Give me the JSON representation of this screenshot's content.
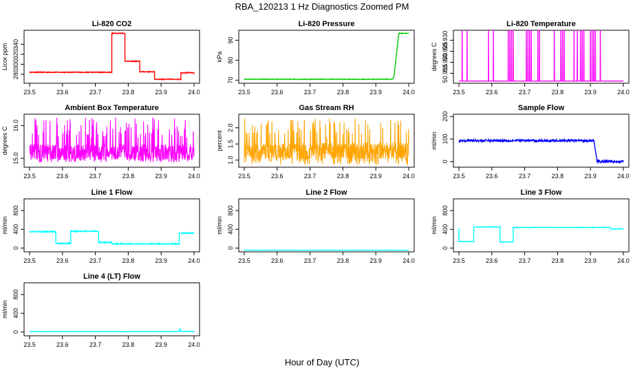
{
  "title": "RBA_120213  1 Hz Diagnostics Zoomed PM",
  "xlabel": "Hour of Day (UTC)",
  "chart_data": [
    {
      "type": "line",
      "title": "Li-820 CO2",
      "ylabel": "Licor ppm",
      "color": "#ff0000",
      "xlim": [
        23.5,
        24.0
      ],
      "ylim": [
        262,
        368
      ],
      "xticks": [
        "23.5",
        "23.6",
        "23.7",
        "23.8",
        "23.9",
        "24.0"
      ],
      "yticks": [
        "280",
        "300",
        "320",
        "340"
      ],
      "series": [
        {
          "x": [
            23.5,
            23.75,
            23.75,
            23.79,
            23.79,
            23.835,
            23.835,
            23.88,
            23.88,
            23.96,
            23.96,
            24.0
          ],
          "y": [
            284,
            284,
            362,
            362,
            306,
            306,
            285,
            285,
            270,
            270,
            283,
            283
          ]
        }
      ],
      "noise": 0.8
    },
    {
      "type": "line",
      "title": "Li-820 Pressure",
      "ylabel": "kPa",
      "color": "#00cc00",
      "xlim": [
        23.5,
        24.0
      ],
      "ylim": [
        68.5,
        95
      ],
      "xticks": [
        "23.5",
        "23.6",
        "23.7",
        "23.8",
        "23.9",
        "24.0"
      ],
      "yticks": [
        "70",
        "80",
        "90"
      ],
      "series": [
        {
          "x": [
            23.5,
            23.95,
            23.955,
            23.962,
            23.97,
            24.0
          ],
          "y": [
            70.5,
            70.5,
            71.5,
            82,
            93.5,
            93.5
          ]
        }
      ],
      "noise": 0.15
    },
    {
      "type": "line",
      "title": "Li-820 Temperature",
      "ylabel": "degrees C",
      "color": "#ff00ff",
      "xlim": [
        23.5,
        24.0
      ],
      "ylim": [
        50.9105,
        50.9345
      ],
      "xticks": [
        "23.5",
        "23.6",
        "23.7",
        "23.8",
        "23.9",
        "24.0"
      ],
      "yticks": [
        "50.915",
        "50.920",
        "50.925",
        "50.930"
      ],
      "baseline": 50.9115,
      "spike_top": 50.9345,
      "spikes": [
        23.51,
        23.525,
        23.59,
        23.605,
        23.65,
        23.655,
        23.66,
        23.665,
        23.705,
        23.71,
        23.715,
        23.72,
        23.74,
        23.745,
        23.79,
        23.81,
        23.815,
        23.82,
        23.85,
        23.86,
        23.87,
        23.875,
        23.88,
        23.9,
        23.905,
        23.91,
        23.915,
        23.93
      ]
    },
    {
      "type": "line",
      "title": "Ambient Box Temperature",
      "ylabel": "degrees C",
      "color": "#ff00ff",
      "xlim": [
        23.5,
        24.0
      ],
      "ylim": [
        14.73,
        16.35
      ],
      "xticks": [
        "23.5",
        "23.6",
        "23.7",
        "23.8",
        "23.9",
        "24.0"
      ],
      "yticks": [
        "15.0",
        "16.0"
      ],
      "level": 15.12,
      "low": 14.88,
      "high": 16.25,
      "mode": "busy"
    },
    {
      "type": "line",
      "title": "Gas Stream RH",
      "ylabel": "percent",
      "color": "#ffa500",
      "xlim": [
        23.5,
        24.0
      ],
      "ylim": [
        0.78,
        2.42
      ],
      "xticks": [
        "23.5",
        "23.6",
        "23.7",
        "23.8",
        "23.9",
        "24.0"
      ],
      "yticks": [
        "1.0",
        "1.5",
        "2.0"
      ],
      "level": 1.22,
      "low": 0.85,
      "high": 2.3,
      "mode": "busy"
    },
    {
      "type": "line",
      "title": "Sample Flow",
      "ylabel": "ml/min",
      "color": "#0000ff",
      "xlim": [
        23.5,
        24.0
      ],
      "ylim": [
        -25,
        210
      ],
      "xticks": [
        "23.5",
        "23.6",
        "23.7",
        "23.8",
        "23.9",
        "24.0"
      ],
      "yticks": [
        "0",
        "100",
        "200"
      ],
      "series": [
        {
          "x": [
            23.5,
            23.91,
            23.915,
            23.92,
            24.0
          ],
          "y": [
            93,
            93,
            50,
            0,
            0
          ]
        }
      ],
      "noise": 5
    },
    {
      "type": "line",
      "title": "Line 1 Flow",
      "ylabel": "ml/min",
      "color": "#00ffff",
      "xlim": [
        23.5,
        24.0
      ],
      "ylim": [
        -80,
        1050
      ],
      "xticks": [
        "23.5",
        "23.6",
        "23.7",
        "23.8",
        "23.9",
        "24.0"
      ],
      "yticks": [
        "0",
        "400",
        "800"
      ],
      "series": [
        {
          "x": [
            23.5,
            23.58,
            23.58,
            23.625,
            23.625,
            23.71,
            23.71,
            23.75,
            23.75,
            23.955,
            23.955,
            24.0
          ],
          "y": [
            350,
            350,
            100,
            100,
            360,
            360,
            120,
            120,
            90,
            90,
            320,
            320
          ]
        }
      ],
      "noise": 12
    },
    {
      "type": "line",
      "title": "Line 2 Flow",
      "ylabel": "ml/min",
      "color": "#00ffff",
      "xlim": [
        23.5,
        24.0
      ],
      "ylim": [
        -80,
        1050
      ],
      "xticks": [
        "23.5",
        "23.6",
        "23.7",
        "23.8",
        "23.9",
        "24.0"
      ],
      "yticks": [
        "0",
        "400",
        "800"
      ],
      "series": [
        {
          "x": [
            23.5,
            24.0
          ],
          "y": [
            -45,
            -45
          ]
        }
      ],
      "noise": 2
    },
    {
      "type": "line",
      "title": "Line 3 Flow",
      "ylabel": "ml/min",
      "color": "#00ffff",
      "xlim": [
        23.5,
        24.0
      ],
      "ylim": [
        -80,
        1050
      ],
      "xticks": [
        "23.5",
        "23.6",
        "23.7",
        "23.8",
        "23.9",
        "24.0"
      ],
      "yticks": [
        "0",
        "400",
        "800"
      ],
      "series": [
        {
          "x": [
            23.5,
            23.5,
            23.545,
            23.545,
            23.625,
            23.625,
            23.665,
            23.665,
            23.96,
            23.96,
            24.0
          ],
          "y": [
            420,
            140,
            140,
            450,
            450,
            130,
            130,
            440,
            440,
            410,
            410
          ]
        }
      ],
      "noise": 6
    },
    {
      "type": "line",
      "title": "Line 4 (LT) Flow",
      "ylabel": "ml/min",
      "color": "#00ffff",
      "xlim": [
        23.5,
        24.0
      ],
      "ylim": [
        -80,
        1050
      ],
      "xticks": [
        "23.5",
        "23.6",
        "23.7",
        "23.8",
        "23.9",
        "24.0"
      ],
      "yticks": [
        "0",
        "400",
        "800"
      ],
      "series": [
        {
          "x": [
            23.5,
            23.955,
            23.957,
            23.96,
            24.0
          ],
          "y": [
            10,
            10,
            80,
            15,
            10
          ]
        }
      ],
      "noise": 4
    }
  ]
}
